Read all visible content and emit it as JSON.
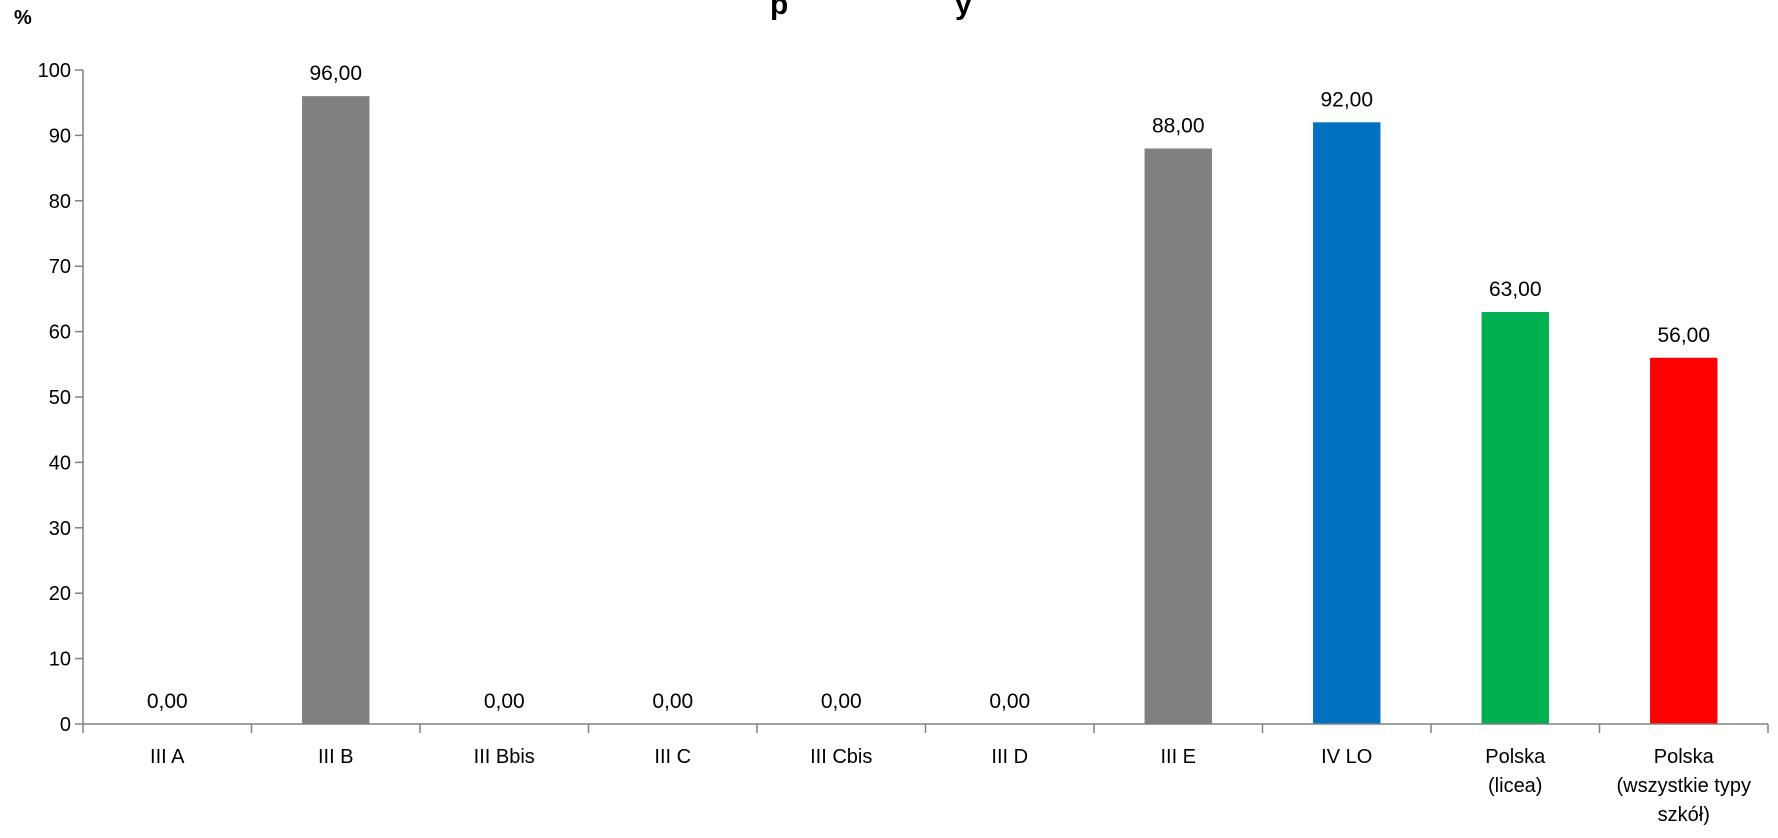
{
  "chart_data": {
    "type": "bar",
    "title_fragment": "p                    y",
    "y_unit": "%",
    "ylim": [
      0,
      100
    ],
    "y_ticks": [
      0,
      10,
      20,
      30,
      40,
      50,
      60,
      70,
      80,
      90,
      100
    ],
    "grid": false,
    "legend": "none",
    "categories": [
      [
        "III A"
      ],
      [
        "III B"
      ],
      [
        "III Bbis"
      ],
      [
        "III C"
      ],
      [
        "III Cbis"
      ],
      [
        "III D"
      ],
      [
        "III E"
      ],
      [
        "IV LO"
      ],
      [
        "Polska",
        "(licea)"
      ],
      [
        "Polska",
        "(wszystkie typy",
        "szkół)"
      ]
    ],
    "values": [
      0,
      96,
      0,
      0,
      0,
      0,
      88,
      92,
      63,
      56
    ],
    "value_labels": [
      "0,00",
      "96,00",
      "0,00",
      "0,00",
      "0,00",
      "0,00",
      "88,00",
      "92,00",
      "63,00",
      "56,00"
    ],
    "colors": [
      "#808080",
      "#808080",
      "#808080",
      "#808080",
      "#808080",
      "#808080",
      "#808080",
      "#0070C0",
      "#00B050",
      "#FF0000"
    ]
  }
}
